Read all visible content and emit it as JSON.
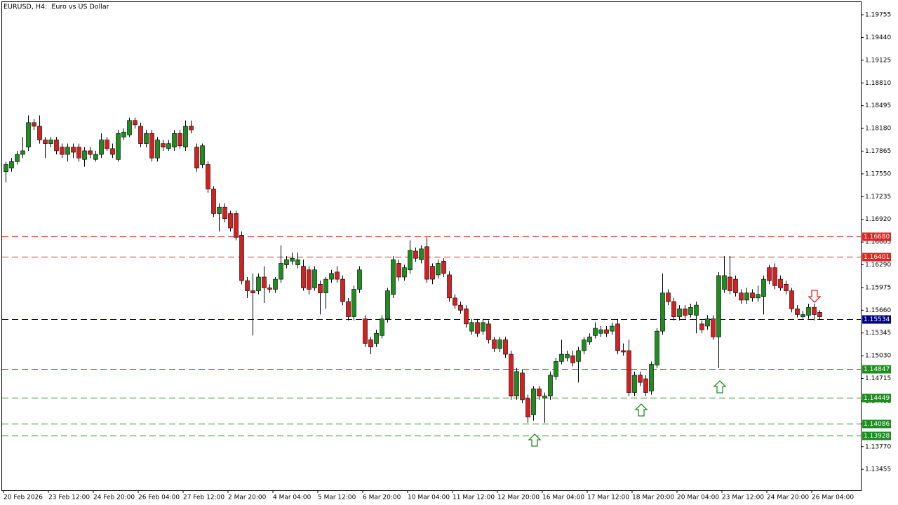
{
  "chart_data": {
    "type": "candlestick",
    "title": "EURUSD, H4:  Euro vs US Dollar",
    "up_color": "#1e8c1e",
    "down_color": "#d42020",
    "ylim": [
      1.13165,
      1.1994
    ],
    "yticks": [
      {
        "value": 1.19755,
        "label": "1.19755"
      },
      {
        "value": 1.1944,
        "label": "1.19440"
      },
      {
        "value": 1.19125,
        "label": "1.19125"
      },
      {
        "value": 1.1881,
        "label": "1.18810"
      },
      {
        "value": 1.18495,
        "label": "1.18495"
      },
      {
        "value": 1.1818,
        "label": "1.18180"
      },
      {
        "value": 1.17865,
        "label": "1.17865"
      },
      {
        "value": 1.1755,
        "label": "1.17550"
      },
      {
        "value": 1.17235,
        "label": "1.17235"
      },
      {
        "value": 1.1692,
        "label": "1.16920"
      },
      {
        "value": 1.16605,
        "label": "1.16605"
      },
      {
        "value": 1.1629,
        "label": "1.16290"
      },
      {
        "value": 1.15975,
        "label": "1.15975"
      },
      {
        "value": 1.1566,
        "label": "1.15660"
      },
      {
        "value": 1.15345,
        "label": "1.15345"
      },
      {
        "value": 1.1503,
        "label": "1.15030"
      },
      {
        "value": 1.14715,
        "label": "1.14715"
      },
      {
        "value": 1.144,
        "label": "1.14400"
      },
      {
        "value": 1.14085,
        "label": "1.14085"
      },
      {
        "value": 1.1377,
        "label": "1.13770"
      },
      {
        "value": 1.13455,
        "label": "1.13455"
      }
    ],
    "levels": [
      {
        "value": 1.1668,
        "label": "1.16680",
        "color": "#e02424"
      },
      {
        "value": 1.16401,
        "label": "1.16401",
        "color": "#e02424"
      },
      {
        "value": 1.15534,
        "label": "1.15534",
        "color": "#000080"
      },
      {
        "value": 1.14847,
        "label": "1.14847",
        "color": "#1e8c1e"
      },
      {
        "value": 1.14449,
        "label": "1.14449",
        "color": "#1e8c1e"
      },
      {
        "value": 1.14086,
        "label": "1.14086",
        "color": "#1e8c1e"
      },
      {
        "value": 1.13928,
        "label": "1.13928",
        "color": "#1e8c1e"
      }
    ],
    "categories": [
      "20 Feb 2026",
      null,
      null,
      null,
      null,
      null,
      null,
      null,
      "23 Feb 12:00",
      null,
      null,
      null,
      null,
      null,
      null,
      null,
      "24 Feb 20:00",
      null,
      null,
      null,
      null,
      null,
      null,
      null,
      "26 Feb 04:00",
      null,
      null,
      null,
      null,
      null,
      null,
      null,
      "27 Feb 12:00",
      null,
      null,
      null,
      null,
      null,
      null,
      null,
      "2 Mar 20:00",
      null,
      null,
      null,
      null,
      null,
      null,
      null,
      "4 Mar 04:00",
      null,
      null,
      null,
      null,
      null,
      null,
      null,
      "5 Mar 12:00",
      null,
      null,
      null,
      null,
      null,
      null,
      null,
      "6 Mar 20:00",
      null,
      null,
      null,
      null,
      null,
      null,
      null,
      "10 Mar 04:00",
      null,
      null,
      null,
      null,
      null,
      null,
      null,
      "11 Mar 12:00",
      null,
      null,
      null,
      null,
      null,
      null,
      null,
      "12 Mar 20:00",
      null,
      null,
      null,
      null,
      null,
      null,
      null,
      "16 Mar 04:00",
      null,
      null,
      null,
      null,
      null,
      null,
      null,
      "17 Mar 12:00",
      null,
      null,
      null,
      null,
      null,
      null,
      null,
      "18 Mar 20:00",
      null,
      null,
      null,
      null,
      null,
      null,
      null,
      "20 Mar 04:00",
      null,
      null,
      null,
      null,
      null,
      null,
      null,
      "23 Mar 12:00",
      null,
      null,
      null,
      null,
      null,
      null,
      null,
      "24 Mar 20:00",
      null,
      null,
      null,
      null,
      null,
      null,
      null,
      "26 Mar 04:00",
      null
    ],
    "open": [
      1.1758,
      1.1763,
      1.1772,
      1.1782,
      1.1792,
      1.1826,
      1.1821,
      1.1802,
      1.1797,
      1.1802,
      1.1792,
      1.1782,
      1.1792,
      1.1792,
      1.1775,
      1.1787,
      1.1775,
      1.1782,
      1.1802,
      1.179,
      1.1775,
      1.1806,
      1.1809,
      1.1829,
      1.1821,
      1.1797,
      1.1811,
      1.1777,
      1.1797,
      1.179,
      1.1792,
      1.1811,
      1.1792,
      1.1821,
      1.1792,
      1.1768,
      1.1768,
      1.1734,
      1.17,
      1.1709,
      1.17,
      1.17,
      1.167,
      1.1607,
      1.1593,
      1.1593,
      1.1612,
      1.1597,
      1.1595,
      1.1609,
      1.1629,
      1.1634,
      1.1629,
      1.1627,
      1.1622,
      1.1597,
      1.1602,
      1.159,
      1.1609,
      1.1619,
      1.1609,
      1.1578,
      1.1557,
      1.1595,
      1.1554,
      1.1525,
      1.152,
      1.1531,
      1.1554,
      1.1588,
      1.1631,
      1.1612,
      1.1622,
      1.1648,
      1.1636,
      1.1654,
      1.1627,
      1.1615,
      1.1634,
      1.1615,
      1.1583,
      1.1573,
      1.1568,
      1.1537,
      1.1549,
      1.1537,
      1.1547,
      1.1525,
      1.1513,
      1.1525,
      1.1505,
      1.1447,
      1.1479,
      1.1444,
      1.1421,
      1.1457,
      1.1444,
      1.1447,
      1.1474,
      1.1495,
      1.15,
      1.1503,
      1.1495,
      1.151,
      1.1522,
      1.1531,
      1.1534,
      1.1539,
      1.1537,
      1.1547,
      1.151,
      1.151,
      1.1452,
      1.1476,
      1.1471,
      1.1454,
      1.149,
      1.1537,
      1.159,
      1.1578,
      1.1557,
      1.1568,
      1.156,
      1.1559,
      1.1547,
      1.1544,
      1.1554,
      1.1529,
      1.1595,
      1.1612,
      1.1609,
      1.159,
      1.158,
      1.159,
      1.1583,
      1.1585,
      1.1625,
      1.1625,
      1.1609,
      1.1602,
      1.1593,
      1.1568,
      1.1557,
      1.1559,
      1.157,
      1.1563
    ],
    "high": [
      1.1772,
      1.1777,
      1.1787,
      1.1806,
      1.1836,
      1.1831,
      1.1836,
      1.1806,
      1.1806,
      1.1806,
      1.1797,
      1.1797,
      1.1797,
      1.1797,
      1.1792,
      1.1792,
      1.1787,
      1.1811,
      1.1806,
      1.1797,
      1.1816,
      1.1818,
      1.1833,
      1.1833,
      1.1826,
      1.1816,
      1.1816,
      1.1806,
      1.1802,
      1.1802,
      1.1816,
      1.1816,
      1.1829,
      1.1829,
      1.1797,
      1.1797,
      1.1772,
      1.1738,
      1.1714,
      1.1714,
      1.1704,
      1.1704,
      1.1675,
      1.1612,
      1.1617,
      1.1617,
      1.1627,
      1.1602,
      1.1612,
      1.1656,
      1.1641,
      1.1646,
      1.1646,
      1.1636,
      1.1627,
      1.1627,
      1.1607,
      1.1612,
      1.1622,
      1.1627,
      1.1614,
      1.1583,
      1.16,
      1.1627,
      1.1559,
      1.1529,
      1.1539,
      1.1559,
      1.1597,
      1.1641,
      1.1636,
      1.1629,
      1.1663,
      1.1653,
      1.1656,
      1.1667,
      1.1631,
      1.1636,
      1.1638,
      1.162,
      1.1588,
      1.1578,
      1.1573,
      1.1554,
      1.1554,
      1.1554,
      1.1552,
      1.1529,
      1.1529,
      1.1529,
      1.151,
      1.1486,
      1.1484,
      1.1449,
      1.1461,
      1.1461,
      1.1452,
      1.1481,
      1.15,
      1.1525,
      1.151,
      1.151,
      1.1515,
      1.1529,
      1.1534,
      1.1549,
      1.1544,
      1.1544,
      1.1549,
      1.1554,
      1.152,
      1.1525,
      1.1481,
      1.1481,
      1.1476,
      1.1495,
      1.1541,
      1.1617,
      1.1595,
      1.1583,
      1.1573,
      1.1573,
      1.1575,
      1.1578,
      1.1552,
      1.1559,
      1.1559,
      1.1619,
      1.1641,
      1.1641,
      1.1614,
      1.1595,
      1.1597,
      1.1595,
      1.16,
      1.1614,
      1.1629,
      1.1631,
      1.1614,
      1.1607,
      1.1597,
      1.1573,
      1.1565,
      1.1575,
      1.1575,
      1.1566
    ],
    "low": [
      1.1743,
      1.1758,
      1.1768,
      1.1777,
      1.1787,
      1.1816,
      1.1797,
      1.1777,
      1.1792,
      1.1782,
      1.1777,
      1.1772,
      1.1777,
      1.1772,
      1.1765,
      1.1777,
      1.1772,
      1.1777,
      1.1787,
      1.1777,
      1.1772,
      1.1802,
      1.1806,
      1.1818,
      1.1792,
      1.1792,
      1.1772,
      1.1772,
      1.1787,
      1.1787,
      1.1787,
      1.179,
      1.1787,
      1.1811,
      1.1758,
      1.1763,
      1.1729,
      1.1695,
      1.1675,
      1.1688,
      1.1675,
      1.1663,
      1.1602,
      1.1583,
      1.1531,
      1.1588,
      1.1576,
      1.159,
      1.159,
      1.1604,
      1.1624,
      1.1629,
      1.1624,
      1.1593,
      1.1588,
      1.1593,
      1.156,
      1.1568,
      1.1604,
      1.1604,
      1.1573,
      1.1552,
      1.1552,
      1.159,
      1.1515,
      1.1505,
      1.1515,
      1.1527,
      1.1549,
      1.1583,
      1.1607,
      1.1607,
      1.1617,
      1.1633,
      1.1631,
      1.1604,
      1.1602,
      1.161,
      1.1612,
      1.1578,
      1.1568,
      1.1561,
      1.1542,
      1.1532,
      1.1529,
      1.1532,
      1.152,
      1.1508,
      1.1508,
      1.15,
      1.1442,
      1.1442,
      1.1437,
      1.141,
      1.1413,
      1.1442,
      1.141,
      1.1442,
      1.1469,
      1.1491,
      1.1495,
      1.1488,
      1.1466,
      1.1505,
      1.1518,
      1.1527,
      1.1529,
      1.1529,
      1.1532,
      1.1505,
      1.1503,
      1.1447,
      1.1447,
      1.1461,
      1.1447,
      1.1449,
      1.1486,
      1.1532,
      1.1573,
      1.1552,
      1.1552,
      1.1554,
      1.1556,
      1.1534,
      1.1534,
      1.1539,
      1.1525,
      1.1486,
      1.159,
      1.1588,
      1.1585,
      1.1575,
      1.1575,
      1.1578,
      1.1578,
      1.156,
      1.1602,
      1.1595,
      1.1593,
      1.1588,
      1.1563,
      1.1556,
      1.1554,
      1.1554,
      1.1552,
      1.1553
    ],
    "close": [
      1.1768,
      1.1772,
      1.1782,
      1.1787,
      1.1826,
      1.1821,
      1.1802,
      1.1797,
      1.1802,
      1.1787,
      1.1782,
      1.1792,
      1.1785,
      1.1777,
      1.1787,
      1.1782,
      1.1782,
      1.1802,
      1.179,
      1.1782,
      1.1811,
      1.1813,
      1.1829,
      1.1823,
      1.1797,
      1.1811,
      1.1777,
      1.1802,
      1.1792,
      1.1797,
      1.1811,
      1.1794,
      1.1821,
      1.1816,
      1.1763,
      1.1794,
      1.1734,
      1.17,
      1.1709,
      1.1693,
      1.168,
      1.1667,
      1.1607,
      1.1593,
      1.159,
      1.1612,
      1.1597,
      1.1595,
      1.1609,
      1.1631,
      1.1636,
      1.1638,
      1.1636,
      1.1597,
      1.1595,
      1.1622,
      1.159,
      1.1609,
      1.1617,
      1.1609,
      1.1578,
      1.1557,
      1.1595,
      1.1622,
      1.152,
      1.1515,
      1.1534,
      1.1554,
      1.1593,
      1.1636,
      1.1612,
      1.1625,
      1.1649,
      1.1638,
      1.1651,
      1.1609,
      1.1609,
      1.1631,
      1.1617,
      1.1583,
      1.1573,
      1.1566,
      1.1547,
      1.1549,
      1.1534,
      1.1549,
      1.1525,
      1.1513,
      1.1525,
      1.1505,
      1.1447,
      1.1481,
      1.1442,
      1.1418,
      1.1457,
      1.1447,
      1.1447,
      1.1476,
      1.1495,
      1.1505,
      1.1505,
      1.1493,
      1.151,
      1.1525,
      1.1529,
      1.1541,
      1.1539,
      1.1534,
      1.1544,
      1.151,
      1.1508,
      1.1452,
      1.1476,
      1.1466,
      1.1452,
      1.1491,
      1.1537,
      1.159,
      1.1578,
      1.1557,
      1.1568,
      1.1559,
      1.157,
      1.1573,
      1.1539,
      1.1554,
      1.1529,
      1.1614,
      1.1614,
      1.1593,
      1.159,
      1.158,
      1.159,
      1.1583,
      1.1588,
      1.1609,
      1.1607,
      1.16,
      1.1597,
      1.1593,
      1.1568,
      1.156,
      1.156,
      1.157,
      1.156,
      1.1557
    ]
  }
}
